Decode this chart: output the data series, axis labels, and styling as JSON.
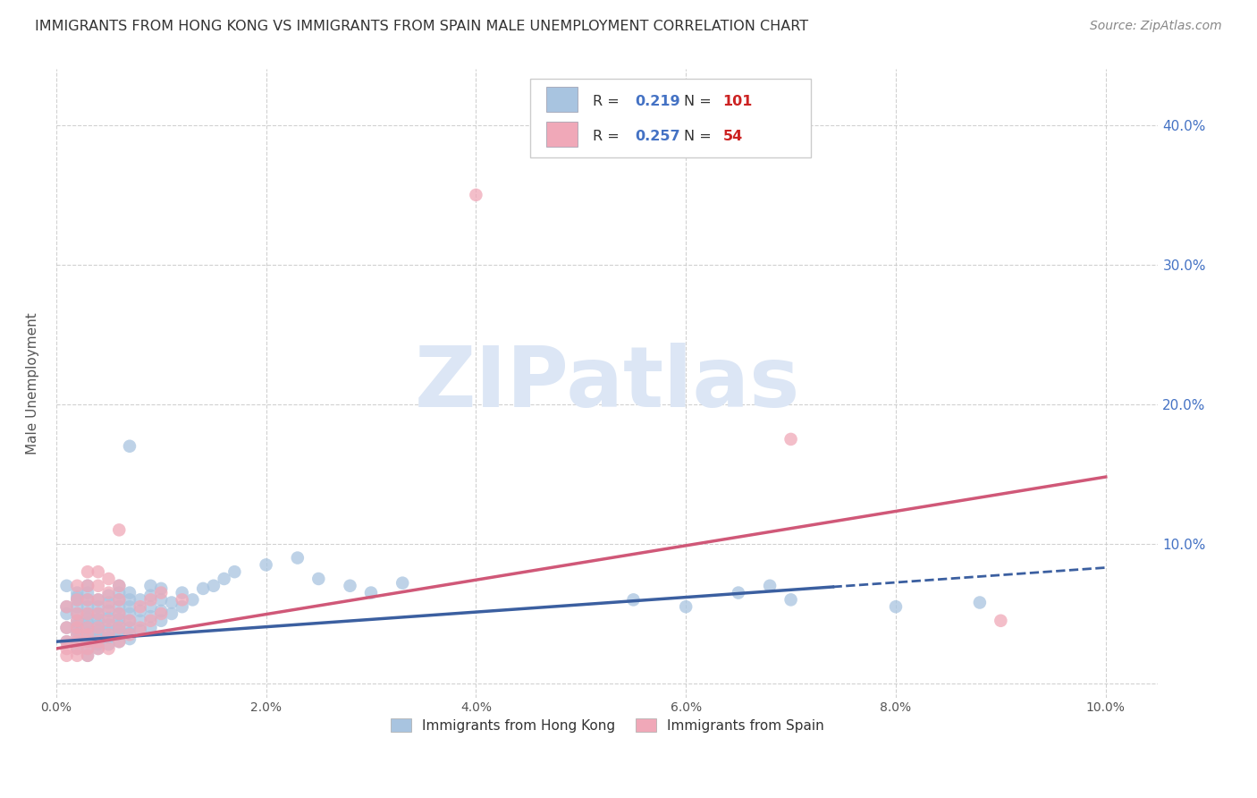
{
  "title": "IMMIGRANTS FROM HONG KONG VS IMMIGRANTS FROM SPAIN MALE UNEMPLOYMENT CORRELATION CHART",
  "source": "Source: ZipAtlas.com",
  "ylabel": "Male Unemployment",
  "xlim": [
    0.0,
    0.105
  ],
  "ylim": [
    -0.01,
    0.44
  ],
  "xticks": [
    0.0,
    0.02,
    0.04,
    0.06,
    0.08,
    0.1
  ],
  "xtick_labels": [
    "0.0%",
    "2.0%",
    "4.0%",
    "6.0%",
    "8.0%",
    "10.0%"
  ],
  "yticks_right": [
    0.0,
    0.1,
    0.2,
    0.3,
    0.4
  ],
  "ytick_labels_right": [
    "",
    "10.0%",
    "20.0%",
    "30.0%",
    "40.0%"
  ],
  "grid_color": "#cccccc",
  "background_color": "#ffffff",
  "watermark": "ZIPatlas",
  "watermark_color": "#dce6f5",
  "series1_color": "#a8c4e0",
  "series2_color": "#f0a8b8",
  "series1_label": "Immigrants from Hong Kong",
  "series2_label": "Immigrants from Spain",
  "series1_R": 0.219,
  "series1_N": 101,
  "series2_R": 0.257,
  "series2_N": 54,
  "series1_line_color": "#3b5fa0",
  "series2_line_color": "#d05878",
  "legend_R_color": "#4472c4",
  "legend_N_color": "#cc2222",
  "hk_x": [
    0.001,
    0.001,
    0.001,
    0.001,
    0.001,
    0.002,
    0.002,
    0.002,
    0.002,
    0.002,
    0.002,
    0.002,
    0.002,
    0.002,
    0.002,
    0.002,
    0.003,
    0.003,
    0.003,
    0.003,
    0.003,
    0.003,
    0.003,
    0.003,
    0.003,
    0.003,
    0.003,
    0.003,
    0.003,
    0.004,
    0.004,
    0.004,
    0.004,
    0.004,
    0.004,
    0.004,
    0.004,
    0.004,
    0.004,
    0.005,
    0.005,
    0.005,
    0.005,
    0.005,
    0.005,
    0.005,
    0.005,
    0.006,
    0.006,
    0.006,
    0.006,
    0.006,
    0.006,
    0.006,
    0.006,
    0.006,
    0.006,
    0.007,
    0.007,
    0.007,
    0.007,
    0.007,
    0.007,
    0.007,
    0.007,
    0.007,
    0.008,
    0.008,
    0.008,
    0.008,
    0.009,
    0.009,
    0.009,
    0.009,
    0.009,
    0.01,
    0.01,
    0.01,
    0.01,
    0.011,
    0.011,
    0.012,
    0.012,
    0.013,
    0.014,
    0.015,
    0.016,
    0.017,
    0.02,
    0.023,
    0.025,
    0.028,
    0.03,
    0.033,
    0.055,
    0.06,
    0.065,
    0.068,
    0.07,
    0.08,
    0.088
  ],
  "hk_y": [
    0.03,
    0.04,
    0.05,
    0.055,
    0.07,
    0.025,
    0.03,
    0.035,
    0.038,
    0.042,
    0.045,
    0.05,
    0.055,
    0.06,
    0.062,
    0.065,
    0.02,
    0.025,
    0.03,
    0.033,
    0.036,
    0.04,
    0.043,
    0.047,
    0.05,
    0.055,
    0.06,
    0.065,
    0.07,
    0.025,
    0.028,
    0.032,
    0.035,
    0.038,
    0.042,
    0.046,
    0.05,
    0.055,
    0.06,
    0.028,
    0.033,
    0.038,
    0.042,
    0.047,
    0.052,
    0.058,
    0.063,
    0.03,
    0.035,
    0.038,
    0.042,
    0.046,
    0.05,
    0.055,
    0.06,
    0.065,
    0.07,
    0.032,
    0.036,
    0.04,
    0.045,
    0.05,
    0.055,
    0.06,
    0.065,
    0.17,
    0.038,
    0.045,
    0.052,
    0.06,
    0.04,
    0.048,
    0.055,
    0.063,
    0.07,
    0.045,
    0.052,
    0.06,
    0.068,
    0.05,
    0.058,
    0.055,
    0.065,
    0.06,
    0.068,
    0.07,
    0.075,
    0.08,
    0.085,
    0.09,
    0.075,
    0.07,
    0.065,
    0.072,
    0.06,
    0.055,
    0.065,
    0.07,
    0.06,
    0.055,
    0.058
  ],
  "spain_x": [
    0.001,
    0.001,
    0.001,
    0.001,
    0.001,
    0.002,
    0.002,
    0.002,
    0.002,
    0.002,
    0.002,
    0.002,
    0.002,
    0.002,
    0.003,
    0.003,
    0.003,
    0.003,
    0.003,
    0.003,
    0.003,
    0.003,
    0.003,
    0.004,
    0.004,
    0.004,
    0.004,
    0.004,
    0.004,
    0.004,
    0.005,
    0.005,
    0.005,
    0.005,
    0.005,
    0.005,
    0.006,
    0.006,
    0.006,
    0.006,
    0.006,
    0.006,
    0.007,
    0.007,
    0.008,
    0.008,
    0.009,
    0.009,
    0.01,
    0.01,
    0.012,
    0.04,
    0.07,
    0.09
  ],
  "spain_y": [
    0.02,
    0.025,
    0.03,
    0.04,
    0.055,
    0.02,
    0.025,
    0.03,
    0.035,
    0.04,
    0.045,
    0.05,
    0.06,
    0.07,
    0.02,
    0.025,
    0.03,
    0.035,
    0.04,
    0.05,
    0.06,
    0.07,
    0.08,
    0.025,
    0.03,
    0.04,
    0.05,
    0.06,
    0.07,
    0.08,
    0.025,
    0.035,
    0.045,
    0.055,
    0.065,
    0.075,
    0.03,
    0.04,
    0.05,
    0.06,
    0.07,
    0.11,
    0.035,
    0.045,
    0.04,
    0.055,
    0.045,
    0.06,
    0.05,
    0.065,
    0.06,
    0.35,
    0.175,
    0.045
  ],
  "line_hk_x0": 0.0,
  "line_hk_y0": 0.03,
  "line_hk_x1": 0.1,
  "line_hk_y1": 0.083,
  "line_hk_solid_end": 0.074,
  "line_spain_x0": 0.0,
  "line_spain_y0": 0.025,
  "line_spain_x1": 0.1,
  "line_spain_y1": 0.148
}
